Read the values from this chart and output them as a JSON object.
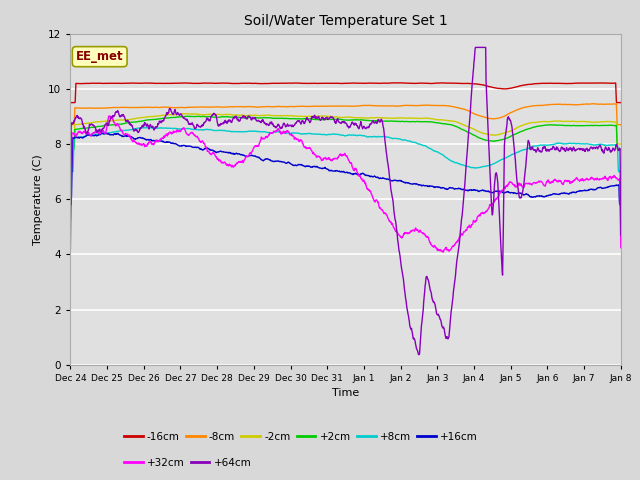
{
  "title": "Soil/Water Temperature Set 1",
  "xlabel": "Time",
  "ylabel": "Temperature (C)",
  "ylim": [
    0,
    12
  ],
  "xlim": [
    0,
    15
  ],
  "bg_color": "#d8d8d8",
  "plot_bg_color": "#e0e0e0",
  "annotation_text": "EE_met",
  "annotation_bg": "#ffffbb",
  "annotation_border": "#999900",
  "xtick_labels": [
    "Dec 24",
    "Dec 25",
    "Dec 26",
    "Dec 27",
    "Dec 28",
    "Dec 29",
    "Dec 30",
    "Dec 31",
    "Jan 1",
    "Jan 2",
    "Jan 3",
    "Jan 4",
    "Jan 5",
    "Jan 6",
    "Jan 7",
    "Jan 8"
  ],
  "series": [
    {
      "label": "-16cm",
      "color": "#cc0000"
    },
    {
      "label": "-8cm",
      "color": "#ff8800"
    },
    {
      "label": "-2cm",
      "color": "#cccc00"
    },
    {
      "label": "+2cm",
      "color": "#00cc00"
    },
    {
      "label": "+8cm",
      "color": "#00cccc"
    },
    {
      "label": "+16cm",
      "color": "#0000cc"
    },
    {
      "label": "+32cm",
      "color": "#ff00ff"
    },
    {
      "label": "+64cm",
      "color": "#8800bb"
    }
  ]
}
